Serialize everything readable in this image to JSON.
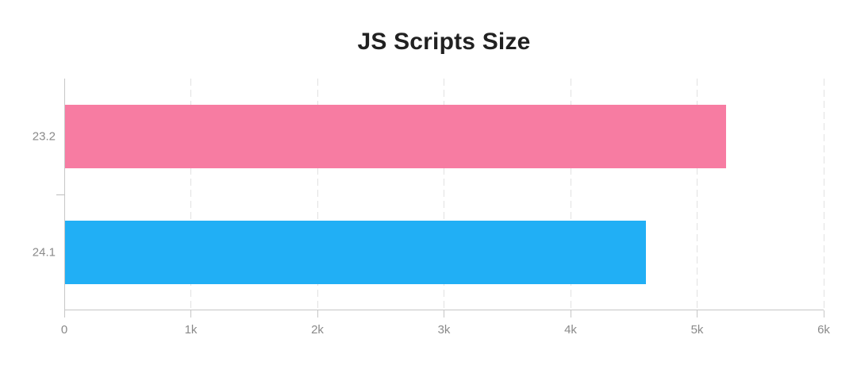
{
  "chart_data": {
    "type": "bar",
    "orientation": "horizontal",
    "title": "JS Scripts Size",
    "categories": [
      "23.2",
      "24.1"
    ],
    "values": [
      5220,
      4590
    ],
    "bar_colors": [
      "#f77ca2",
      "#21aff5"
    ],
    "xlim": [
      0,
      6000
    ],
    "xticks": [
      {
        "value": 0,
        "label": "0"
      },
      {
        "value": 1000,
        "label": "1k"
      },
      {
        "value": 2000,
        "label": "2k"
      },
      {
        "value": 3000,
        "label": "3k"
      },
      {
        "value": 4000,
        "label": "4k"
      },
      {
        "value": 5000,
        "label": "5k"
      },
      {
        "value": 6000,
        "label": "6k"
      }
    ],
    "grid": "vertical-dashed",
    "legend": "none",
    "xlabel": "",
    "ylabel": ""
  },
  "styles": {
    "background": "#ffffff",
    "title_color": "#212121",
    "label_color": "#8a8a8a",
    "axis_color": "#c6c6c6",
    "grid_color": "#e2e2e2"
  }
}
